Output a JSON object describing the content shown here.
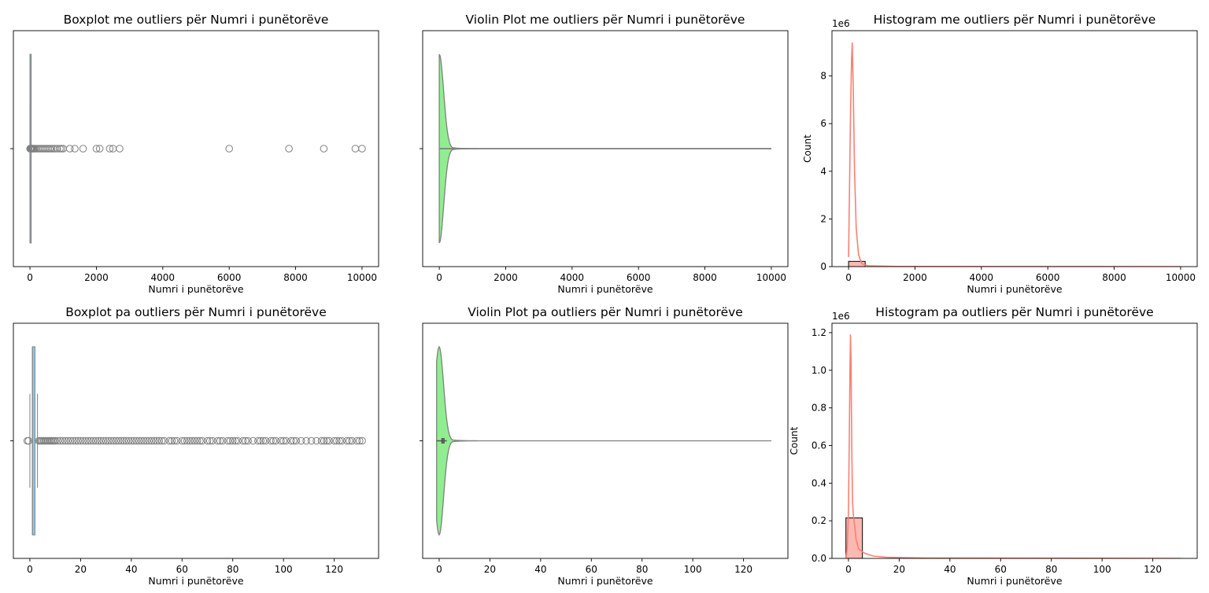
{
  "chart_data": [
    {
      "type": "boxplot",
      "title": "Boxplot me outliers për Numri i punëtorëve",
      "xlabel": "Numri i punëtorëve",
      "ylabel": "",
      "xlim": [
        -500,
        10500
      ],
      "xticks": [
        0,
        2000,
        4000,
        6000,
        8000,
        10000
      ],
      "box": {
        "q1": 1,
        "median": 1,
        "q3": 2,
        "whisker_low": 0,
        "whisker_high": 3
      },
      "outliers": [
        4,
        8,
        12,
        20,
        30,
        45,
        60,
        80,
        100,
        130,
        160,
        200,
        250,
        300,
        350,
        400,
        450,
        500,
        550,
        600,
        650,
        700,
        750,
        820,
        900,
        950,
        1000,
        1200,
        1350,
        1600,
        2000,
        2100,
        2400,
        2500,
        2700,
        6000,
        7800,
        8850,
        9800,
        10000
      ],
      "colors": {
        "box": "#87ceeb",
        "line": "#808080"
      }
    },
    {
      "type": "violin",
      "title": "Violin Plot me outliers për Numri i punëtorëve",
      "xlabel": "Numri i punëtorëve",
      "ylabel": "",
      "xlim": [
        -500,
        10500
      ],
      "xticks": [
        0,
        2000,
        4000,
        6000,
        8000,
        10000
      ],
      "range": [
        0,
        10000
      ],
      "colors": {
        "fill": "#90ee90",
        "line": "#808080"
      }
    },
    {
      "type": "histogram",
      "title": "Histogram me outliers për Numri i punëtorëve",
      "xlabel": "Numri i punëtorëve",
      "ylabel": "Count",
      "offset_text": "1e6",
      "xlim": [
        -500,
        10500
      ],
      "ylim": [
        0,
        9.9
      ],
      "xticks": [
        0,
        2000,
        4000,
        6000,
        8000,
        10000
      ],
      "yticks": [
        0,
        2,
        4,
        6,
        8
      ],
      "bins": [
        {
          "x0": 0,
          "x1": 500,
          "count": 0.22
        }
      ],
      "kde": [
        [
          0,
          0.4
        ],
        [
          25,
          3.0
        ],
        [
          60,
          6.5
        ],
        [
          90,
          8.7
        ],
        [
          110,
          9.4
        ],
        [
          140,
          7.5
        ],
        [
          180,
          4.0
        ],
        [
          230,
          1.6
        ],
        [
          300,
          0.5
        ],
        [
          400,
          0.12
        ],
        [
          600,
          0.03
        ],
        [
          1500,
          0.005
        ],
        [
          10000,
          0
        ]
      ],
      "colors": {
        "fill": "#fa8072",
        "line": "#fa8072"
      }
    },
    {
      "type": "boxplot",
      "title": "Boxplot pa outliers për Numri i punëtorëve",
      "xlabel": "Numri i punëtorëve",
      "ylabel": "",
      "xlim": [
        -6.5,
        137.5
      ],
      "xticks": [
        0,
        20,
        40,
        60,
        80,
        100,
        120
      ],
      "box": {
        "q1": 1,
        "median": 1,
        "q3": 2,
        "whisker_low": 0,
        "whisker_high": 3
      },
      "outliers": [
        -1,
        -0.5,
        3.5,
        4,
        4.5,
        5,
        5.5,
        6,
        6.5,
        7,
        7.5,
        8,
        8.5,
        9,
        9.5,
        10,
        11,
        12,
        13,
        14,
        15,
        16,
        17,
        18,
        19,
        20,
        21,
        22,
        23,
        24,
        25,
        26,
        27,
        28,
        29,
        30,
        31,
        32,
        33,
        34,
        35,
        36,
        37,
        38,
        39,
        40,
        41,
        42,
        43,
        44,
        45,
        46,
        47,
        48,
        49,
        50,
        51,
        52,
        53,
        55,
        56,
        57,
        58,
        60,
        61,
        62,
        63,
        64,
        65,
        66,
        67,
        68,
        70,
        71,
        72,
        74,
        75,
        76,
        78,
        79,
        80,
        81,
        82,
        84,
        85,
        86,
        88,
        90,
        91,
        92,
        93,
        95,
        96,
        97,
        99,
        100,
        101,
        103,
        104,
        105,
        107,
        109,
        111,
        113,
        115,
        116,
        117,
        118,
        120,
        121,
        122,
        123,
        125,
        126,
        127,
        129,
        130,
        131
      ],
      "colors": {
        "box": "#87ceeb",
        "line": "#808080"
      }
    },
    {
      "type": "violin",
      "title": "Violin Plot pa outliers për Numri i punëtorëve",
      "xlabel": "Numri i punëtorëve",
      "ylabel": "",
      "xlim": [
        -6.5,
        137.5
      ],
      "xticks": [
        0,
        20,
        40,
        60,
        80,
        100,
        120
      ],
      "range": [
        -1,
        131
      ],
      "colors": {
        "fill": "#90ee90",
        "line": "#808080"
      }
    },
    {
      "type": "histogram",
      "title": "Histogram pa outliers për Numri i punëtorëve",
      "xlabel": "Numri i punëtorëve",
      "ylabel": "Count",
      "offset_text": "1e6",
      "xlim": [
        -6.5,
        137.5
      ],
      "ylim": [
        0,
        1.25
      ],
      "xticks": [
        0,
        20,
        40,
        60,
        80,
        100,
        120
      ],
      "yticks": [
        0.0,
        0.2,
        0.4,
        0.6,
        0.8,
        1.0,
        1.2
      ],
      "bins": [
        {
          "x0": -1,
          "x1": 5.5,
          "count": 0.215
        }
      ],
      "kde": [
        [
          -1,
          0.0
        ],
        [
          -0.5,
          0.05
        ],
        [
          0,
          0.25
        ],
        [
          0.3,
          0.6
        ],
        [
          0.6,
          1.0
        ],
        [
          0.8,
          1.19
        ],
        [
          1.0,
          1.05
        ],
        [
          1.3,
          0.6
        ],
        [
          1.6,
          0.3
        ],
        [
          2,
          0.22
        ],
        [
          2.5,
          0.17
        ],
        [
          3,
          0.1
        ],
        [
          4,
          0.05
        ],
        [
          6,
          0.03
        ],
        [
          8,
          0.02
        ],
        [
          10,
          0.012
        ],
        [
          15,
          0.006
        ],
        [
          30,
          0.002
        ],
        [
          131,
          0
        ]
      ],
      "colors": {
        "fill": "#fa8072",
        "line": "#fa8072"
      }
    }
  ]
}
